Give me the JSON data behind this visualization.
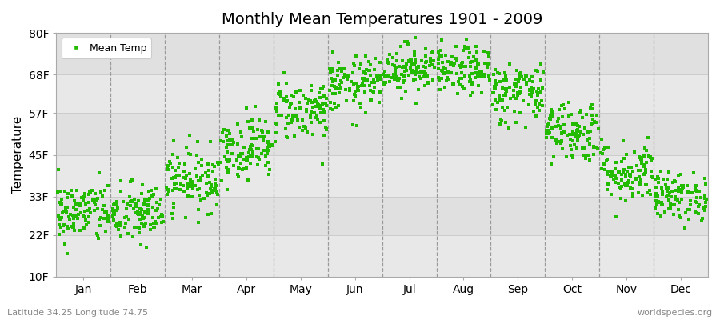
{
  "title": "Monthly Mean Temperatures 1901 - 2009",
  "ylabel": "Temperature",
  "xlabel_labels": [
    "Jan",
    "Feb",
    "Mar",
    "Apr",
    "May",
    "Jun",
    "Jul",
    "Aug",
    "Sep",
    "Oct",
    "Nov",
    "Dec"
  ],
  "ytick_values": [
    10,
    22,
    33,
    45,
    57,
    68,
    80
  ],
  "ytick_labels": [
    "10F",
    "22F",
    "33F",
    "45F",
    "57F",
    "68F",
    "80F"
  ],
  "ylim": [
    10,
    80
  ],
  "xlim": [
    0,
    12
  ],
  "dot_color": "#22bb00",
  "bg_color": "#eeeeee",
  "band_color_light": "#e8e8e8",
  "band_color_dark": "#d8d8d8",
  "figure_bg": "#ffffff",
  "legend_label": "Mean Temp",
  "footer_left": "Latitude 34.25 Longitude 74.75",
  "footer_right": "worldspecies.org",
  "marker_size": 6,
  "month_means": [
    28.5,
    28.0,
    38.0,
    47.0,
    58.0,
    65.0,
    70.0,
    69.0,
    63.0,
    52.0,
    40.0,
    33.0
  ],
  "month_spreads": [
    4.5,
    4.5,
    4.5,
    4.5,
    4.5,
    4.0,
    3.5,
    3.5,
    4.5,
    4.5,
    4.5,
    3.5
  ],
  "n_years": 109,
  "dashed_line_color": "#999999",
  "dashed_line_positions": [
    1,
    2,
    3,
    4,
    5,
    6,
    7,
    8,
    9,
    10,
    11
  ],
  "grid_color": "#cccccc"
}
